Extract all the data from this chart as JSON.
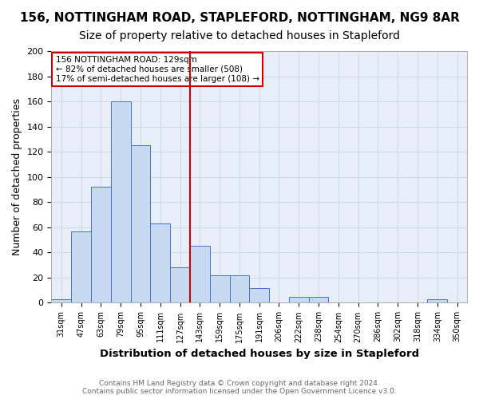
{
  "title1": "156, NOTTINGHAM ROAD, STAPLEFORD, NOTTINGHAM, NG9 8AR",
  "title2": "Size of property relative to detached houses in Stapleford",
  "xlabel": "Distribution of detached houses by size in Stapleford",
  "ylabel": "Number of detached properties",
  "footer": "Contains HM Land Registry data © Crown copyright and database right 2024.\nContains public sector information licensed under the Open Government Licence v3.0.",
  "bin_labels": [
    "31sqm",
    "47sqm",
    "63sqm",
    "79sqm",
    "95sqm",
    "111sqm",
    "127sqm",
    "143sqm",
    "159sqm",
    "175sqm",
    "191sqm",
    "206sqm",
    "222sqm",
    "238sqm",
    "254sqm",
    "270sqm",
    "286sqm",
    "302sqm",
    "318sqm",
    "334sqm",
    "350sqm"
  ],
  "bar_values": [
    3,
    57,
    92,
    160,
    125,
    63,
    28,
    45,
    22,
    22,
    12,
    0,
    5,
    5,
    0,
    0,
    0,
    0,
    0,
    3,
    0
  ],
  "bar_color": "#c6d9f0",
  "bar_edge_color": "#4472c4",
  "vline_x_index": 6,
  "vline_color": "#cc0000",
  "annotation_text": "156 NOTTINGHAM ROAD: 129sqm\n← 82% of detached houses are smaller (508)\n17% of semi-detached houses are larger (108) →",
  "annotation_box_color": "#cc0000",
  "ylim": [
    0,
    200
  ],
  "yticks": [
    0,
    20,
    40,
    60,
    80,
    100,
    120,
    140,
    160,
    180,
    200
  ],
  "grid_color": "#d0d8e8",
  "bg_color": "#e8eef8",
  "title1_fontsize": 11,
  "title2_fontsize": 10,
  "xlabel_fontsize": 9.5,
  "ylabel_fontsize": 9
}
